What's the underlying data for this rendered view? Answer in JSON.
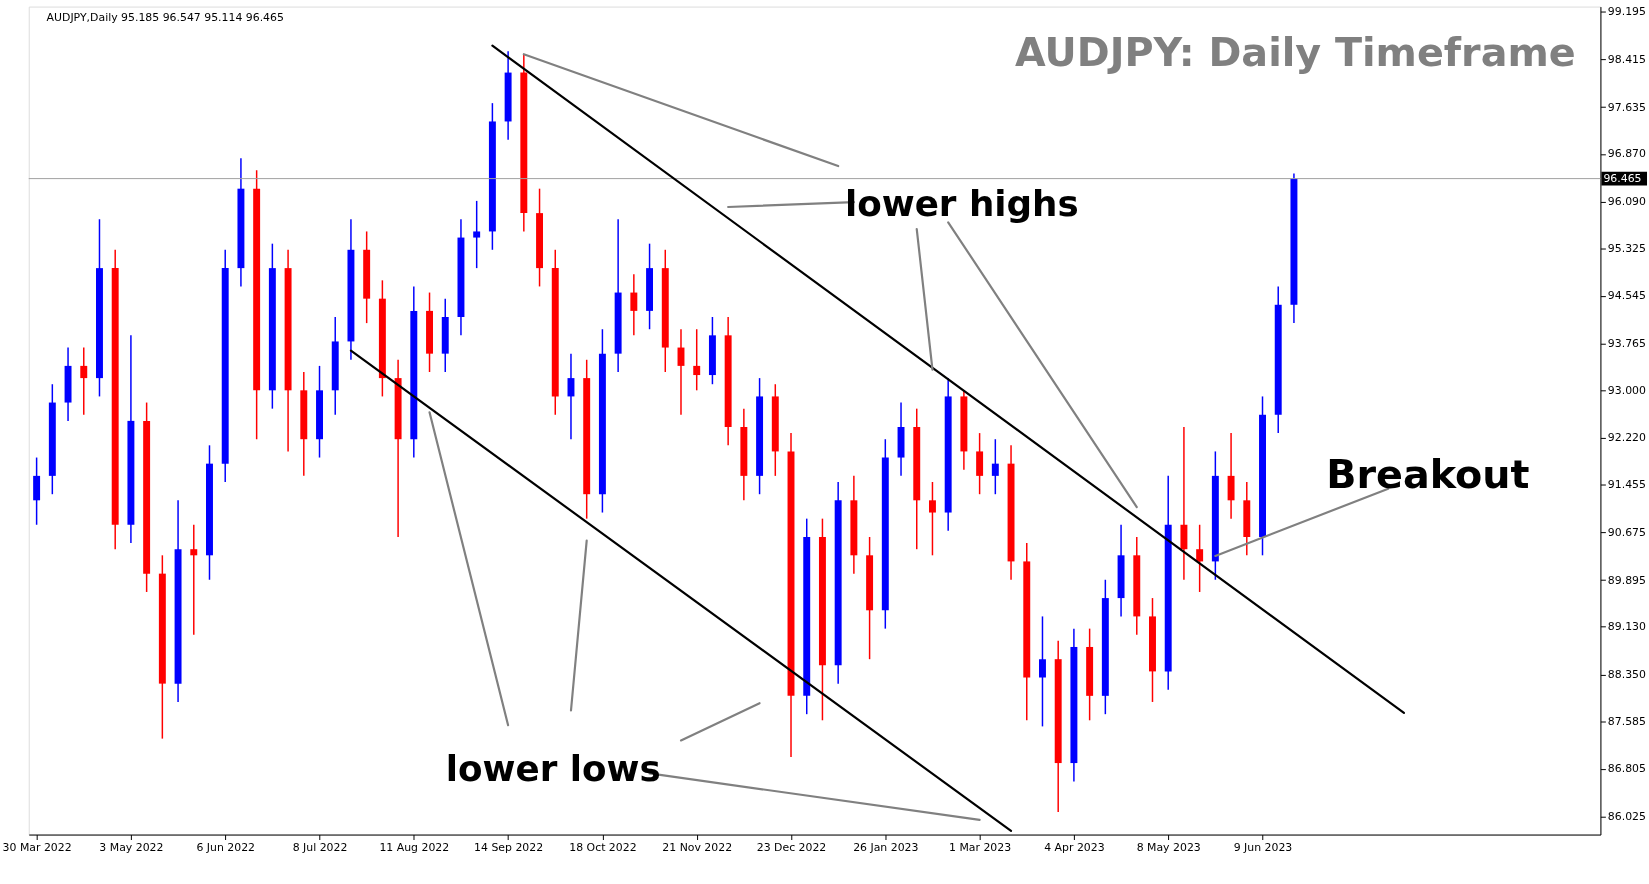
{
  "chart_data": {
    "type": "candlestick",
    "title": "AUDJPY: Daily Timeframe",
    "annotations": [
      "AUDJPY,Daily  95.185 96.547 95.114 96.465",
      "lower highs",
      "lower lows",
      "Breakout"
    ],
    "categories": [
      "30 Mar 2022",
      null,
      null,
      null,
      null,
      null,
      "3 May 2022",
      null,
      null,
      null,
      null,
      null,
      "6 Jun 2022",
      null,
      null,
      null,
      null,
      null,
      "8 Jul 2022",
      null,
      null,
      null,
      null,
      null,
      "11 Aug 2022",
      null,
      null,
      null,
      null,
      null,
      "14 Sep 2022",
      null,
      null,
      null,
      null,
      null,
      "18 Oct 2022",
      null,
      null,
      null,
      null,
      null,
      "21 Nov 2022",
      null,
      null,
      null,
      null,
      null,
      "23 Dec 2022",
      null,
      null,
      null,
      null,
      null,
      "26 Jan 2023",
      null,
      null,
      null,
      null,
      null,
      "1 Mar 2023",
      null,
      null,
      null,
      null,
      null,
      "4 Apr 2023",
      null,
      null,
      null,
      null,
      null,
      "8 May 2023",
      null,
      null,
      null,
      null,
      null,
      "9 Jun 2023",
      null,
      null,
      null,
      null,
      null,
      null,
      null,
      null,
      null,
      null,
      null,
      null,
      null,
      null,
      null,
      null,
      null,
      null,
      null,
      null,
      null
    ],
    "ohlc": [
      [
        91.2,
        91.9,
        90.8,
        91.6
      ],
      [
        91.6,
        93.1,
        91.3,
        92.8
      ],
      [
        92.8,
        93.7,
        92.5,
        93.4
      ],
      [
        93.4,
        93.7,
        92.6,
        93.2
      ],
      [
        93.2,
        95.8,
        92.9,
        95.0
      ],
      [
        95.0,
        95.3,
        90.4,
        90.8
      ],
      [
        90.8,
        93.9,
        90.5,
        92.5
      ],
      [
        92.5,
        92.8,
        89.7,
        90.0
      ],
      [
        90.0,
        90.3,
        87.3,
        88.2
      ],
      [
        88.2,
        91.2,
        87.9,
        90.4
      ],
      [
        90.4,
        90.8,
        89.0,
        90.3
      ],
      [
        90.3,
        92.1,
        89.9,
        91.8
      ],
      [
        91.8,
        95.3,
        91.5,
        95.0
      ],
      [
        95.0,
        96.8,
        94.7,
        96.3
      ],
      [
        96.3,
        96.6,
        92.2,
        93.0
      ],
      [
        93.0,
        95.4,
        92.7,
        95.0
      ],
      [
        95.0,
        95.3,
        92.0,
        93.0
      ],
      [
        93.0,
        93.3,
        91.6,
        92.2
      ],
      [
        92.2,
        93.4,
        91.9,
        93.0
      ],
      [
        93.0,
        94.2,
        92.6,
        93.8
      ],
      [
        93.8,
        95.8,
        93.5,
        95.3
      ],
      [
        95.3,
        95.6,
        94.1,
        94.5
      ],
      [
        94.5,
        94.8,
        92.9,
        93.2
      ],
      [
        93.2,
        93.5,
        90.6,
        92.2
      ],
      [
        92.2,
        94.7,
        91.9,
        94.3
      ],
      [
        94.3,
        94.6,
        93.3,
        93.6
      ],
      [
        93.6,
        94.5,
        93.3,
        94.2
      ],
      [
        94.2,
        95.8,
        93.9,
        95.5
      ],
      [
        95.5,
        96.1,
        95.0,
        95.6
      ],
      [
        95.6,
        97.7,
        95.3,
        97.4
      ],
      [
        97.4,
        98.55,
        97.1,
        98.2
      ],
      [
        98.2,
        98.5,
        95.6,
        95.9
      ],
      [
        95.9,
        96.3,
        94.7,
        95.0
      ],
      [
        95.0,
        95.3,
        92.6,
        92.9
      ],
      [
        92.9,
        93.6,
        92.2,
        93.2
      ],
      [
        93.2,
        93.5,
        90.9,
        91.3
      ],
      [
        91.3,
        94.0,
        91.0,
        93.6
      ],
      [
        93.6,
        95.8,
        93.3,
        94.6
      ],
      [
        94.6,
        94.9,
        93.9,
        94.3
      ],
      [
        94.3,
        95.4,
        94.0,
        95.0
      ],
      [
        95.0,
        95.3,
        93.3,
        93.7
      ],
      [
        93.7,
        94.0,
        92.6,
        93.4
      ],
      [
        93.4,
        94.0,
        93.0,
        93.25
      ],
      [
        93.25,
        94.2,
        93.1,
        93.9
      ],
      [
        93.9,
        94.2,
        92.1,
        92.4
      ],
      [
        92.4,
        92.7,
        91.2,
        91.6
      ],
      [
        91.6,
        93.2,
        91.3,
        92.9
      ],
      [
        92.9,
        93.1,
        91.6,
        92.0
      ],
      [
        92.0,
        92.3,
        87.0,
        88.0
      ],
      [
        88.0,
        90.9,
        87.7,
        90.6
      ],
      [
        90.6,
        90.9,
        87.6,
        88.5
      ],
      [
        88.5,
        91.5,
        88.2,
        91.2
      ],
      [
        91.2,
        91.6,
        90.0,
        90.3
      ],
      [
        90.3,
        90.6,
        88.6,
        89.4
      ],
      [
        89.4,
        92.2,
        89.1,
        91.9
      ],
      [
        91.9,
        92.8,
        91.6,
        92.4
      ],
      [
        92.4,
        92.7,
        90.4,
        91.2
      ],
      [
        91.2,
        91.5,
        90.3,
        91.0
      ],
      [
        91.0,
        93.2,
        90.7,
        92.9
      ],
      [
        92.9,
        93.0,
        91.7,
        92.0
      ],
      [
        92.0,
        92.3,
        91.3,
        91.6
      ],
      [
        91.6,
        92.2,
        91.3,
        91.8
      ],
      [
        91.8,
        92.1,
        89.9,
        90.2
      ],
      [
        90.2,
        90.5,
        87.6,
        88.3
      ],
      [
        88.3,
        89.3,
        87.5,
        88.6
      ],
      [
        88.6,
        88.9,
        86.1,
        86.9
      ],
      [
        86.9,
        89.1,
        86.6,
        88.8
      ],
      [
        88.8,
        89.1,
        87.6,
        88.0
      ],
      [
        88.0,
        89.9,
        87.7,
        89.6
      ],
      [
        89.6,
        90.8,
        89.3,
        90.3
      ],
      [
        90.3,
        90.6,
        89.0,
        89.3
      ],
      [
        89.3,
        89.6,
        87.9,
        88.4
      ],
      [
        88.4,
        91.6,
        88.1,
        90.8
      ],
      [
        90.8,
        92.4,
        89.9,
        90.4
      ],
      [
        90.4,
        90.8,
        89.7,
        90.2
      ],
      [
        90.2,
        92.0,
        89.9,
        91.6
      ],
      [
        91.6,
        92.3,
        90.9,
        91.2
      ],
      [
        91.2,
        91.5,
        90.3,
        90.6
      ],
      [
        90.6,
        92.9,
        90.3,
        92.6
      ],
      [
        92.6,
        94.7,
        92.3,
        94.4
      ],
      [
        94.4,
        96.55,
        94.1,
        96.465
      ],
      null,
      null,
      null,
      null,
      null,
      null,
      null,
      null,
      null,
      null,
      null,
      null,
      null,
      null,
      null,
      null,
      null,
      null,
      null
    ],
    "colors": [
      "#0000ff",
      "#0000ff",
      "#0000ff",
      "#ff0000",
      "#0000ff",
      "#ff0000",
      "#0000ff",
      "#ff0000",
      "#ff0000",
      "#0000ff",
      "#ff0000",
      "#0000ff",
      "#0000ff",
      "#0000ff",
      "#ff0000",
      "#0000ff",
      "#ff0000",
      "#ff0000",
      "#0000ff",
      "#0000ff",
      "#0000ff",
      "#ff0000",
      "#ff0000",
      "#ff0000",
      "#0000ff",
      "#ff0000",
      "#0000ff",
      "#0000ff",
      "#0000ff",
      "#0000ff",
      "#0000ff",
      "#ff0000",
      "#ff0000",
      "#ff0000",
      "#0000ff",
      "#ff0000",
      "#0000ff",
      "#0000ff",
      "#ff0000",
      "#0000ff",
      "#ff0000",
      "#ff0000",
      "#ff0000",
      "#0000ff",
      "#ff0000",
      "#ff0000",
      "#0000ff",
      "#ff0000",
      "#ff0000",
      "#0000ff",
      "#ff0000",
      "#0000ff",
      "#ff0000",
      "#ff0000",
      "#0000ff",
      "#0000ff",
      "#ff0000",
      "#ff0000",
      "#0000ff",
      "#ff0000",
      "#ff0000",
      "#0000ff",
      "#ff0000",
      "#ff0000",
      "#0000ff",
      "#ff0000",
      "#0000ff",
      "#ff0000",
      "#0000ff",
      "#0000ff",
      "#ff0000",
      "#ff0000",
      "#0000ff",
      "#ff0000",
      "#ff0000",
      "#0000ff",
      "#ff0000",
      "#ff0000",
      "#0000ff",
      "#0000ff",
      "#0000ff",
      null,
      null,
      null,
      null,
      null,
      null,
      null,
      null,
      null,
      null,
      null,
      null,
      null,
      null,
      null,
      null,
      null,
      null,
      null
    ],
    "series": [
      {
        "type": "line",
        "color": "#000000",
        "values": [
          null,
          null,
          null,
          null,
          null,
          null,
          null,
          null,
          null,
          null,
          null,
          null,
          null,
          null,
          null,
          null,
          null,
          null,
          null,
          null,
          null,
          null,
          null,
          null,
          null,
          null,
          null,
          null,
          null,
          98.64,
          null,
          null,
          null,
          null,
          null,
          null,
          null,
          null,
          null,
          null,
          null,
          null,
          null,
          null,
          null,
          null,
          null,
          null,
          null,
          null,
          null,
          null,
          null,
          null,
          null,
          null,
          null,
          null,
          null,
          null,
          null,
          null,
          null,
          null,
          null,
          null,
          null,
          null,
          null,
          null,
          null,
          null,
          null,
          null,
          null,
          null,
          null,
          null,
          null,
          null,
          null,
          null,
          null,
          null,
          null,
          null,
          null,
          87.72,
          null,
          null,
          null,
          null,
          null,
          null,
          null,
          null,
          null,
          null,
          null,
          null
        ]
      },
      {
        "type": "line",
        "color": "#000000",
        "values": [
          null,
          null,
          null,
          null,
          null,
          null,
          null,
          null,
          null,
          null,
          null,
          null,
          null,
          null,
          null,
          null,
          null,
          null,
          null,
          null,
          93.65,
          null,
          null,
          null,
          null,
          null,
          null,
          null,
          null,
          null,
          null,
          null,
          null,
          null,
          null,
          null,
          null,
          null,
          null,
          null,
          null,
          null,
          null,
          null,
          null,
          null,
          null,
          null,
          null,
          null,
          null,
          null,
          null,
          null,
          null,
          null,
          null,
          null,
          null,
          null,
          null,
          null,
          85.79,
          null,
          null,
          null,
          null,
          null,
          null,
          null,
          null,
          null,
          null,
          null,
          null,
          null,
          null,
          null,
          null,
          null,
          null,
          null,
          null,
          null,
          null,
          null,
          null,
          null,
          null,
          null,
          null,
          null,
          null,
          null,
          null,
          null,
          null,
          null,
          null,
          null
        ]
      },
      {
        "type": "line",
        "color": "#808080",
        "values": [
          null,
          null,
          null,
          null,
          null,
          null,
          null,
          null,
          null,
          null,
          null,
          null,
          null,
          null,
          null,
          null,
          null,
          null,
          null,
          null,
          null,
          null,
          null,
          null,
          null,
          null,
          null,
          null,
          null,
          null,
          null,
          98.5,
          null,
          null,
          null,
          null,
          null,
          null,
          null,
          null,
          null,
          null,
          null,
          null,
          null,
          null,
          null,
          null,
          null,
          null,
          null,
          96.67,
          null,
          null,
          null,
          null,
          null,
          null,
          null,
          null,
          null,
          null,
          null,
          null,
          null,
          null,
          null,
          null,
          null,
          null,
          null,
          null,
          null,
          null,
          null,
          null,
          null,
          null,
          null,
          null,
          null,
          null,
          null,
          null,
          null,
          null,
          null,
          null,
          null,
          null,
          null,
          null,
          null,
          null,
          null,
          null,
          null,
          null,
          null,
          null
        ]
      },
      {
        "type": "line",
        "color": "#808080",
        "values": [
          null,
          null,
          null,
          null,
          null,
          null,
          null,
          null,
          null,
          null,
          null,
          null,
          null,
          null,
          null,
          null,
          null,
          null,
          null,
          null,
          null,
          null,
          null,
          null,
          null,
          null,
          null,
          null,
          null,
          null,
          null,
          null,
          null,
          null,
          null,
          null,
          null,
          null,
          null,
          null,
          null,
          null,
          null,
          null,
          96.0,
          null,
          null,
          null,
          null,
          null,
          null,
          null,
          96.08,
          null,
          null,
          null,
          null,
          null,
          null,
          null,
          null,
          null,
          null,
          null,
          null,
          null,
          null,
          null,
          null,
          null,
          null,
          null,
          null,
          null,
          null,
          null,
          null,
          null,
          null,
          null,
          null,
          null,
          null,
          null,
          null,
          null,
          null,
          null,
          null,
          null,
          null,
          null,
          null,
          null,
          null,
          null,
          null,
          null,
          null,
          null
        ]
      },
      {
        "type": "line",
        "color": "#808080",
        "values": [
          null,
          null,
          null,
          null,
          null,
          null,
          null,
          null,
          null,
          null,
          null,
          null,
          null,
          null,
          null,
          null,
          null,
          null,
          null,
          null,
          null,
          null,
          null,
          null,
          null,
          null,
          null,
          null,
          null,
          null,
          null,
          null,
          null,
          null,
          null,
          null,
          null,
          null,
          null,
          null,
          null,
          null,
          null,
          null,
          null,
          null,
          null,
          null,
          null,
          null,
          null,
          null,
          null,
          null,
          null,
          null,
          95.64,
          93.34,
          null,
          null,
          null,
          null,
          null,
          null,
          null,
          null,
          null,
          null,
          null,
          null,
          null,
          null,
          null,
          null,
          null,
          null,
          null,
          null,
          null,
          null,
          null,
          null,
          null,
          null,
          null,
          null,
          null,
          null,
          null,
          null,
          null,
          null,
          null,
          null,
          null,
          null,
          null,
          null,
          null,
          null
        ]
      },
      {
        "type": "line",
        "color": "#808080",
        "values": [
          null,
          null,
          null,
          null,
          null,
          null,
          null,
          null,
          null,
          null,
          null,
          null,
          null,
          null,
          null,
          null,
          null,
          null,
          null,
          null,
          null,
          null,
          null,
          null,
          null,
          null,
          null,
          null,
          null,
          null,
          null,
          null,
          null,
          null,
          null,
          null,
          null,
          null,
          null,
          null,
          null,
          null,
          null,
          null,
          null,
          null,
          null,
          null,
          null,
          null,
          null,
          null,
          null,
          null,
          null,
          null,
          null,
          null,
          95.75,
          null,
          null,
          null,
          null,
          null,
          null,
          null,
          null,
          null,
          null,
          null,
          91.09,
          null,
          null,
          null,
          null,
          null,
          null,
          null,
          null,
          null,
          null,
          null,
          null,
          null,
          null,
          null,
          null,
          null,
          null,
          null,
          null,
          null,
          null,
          null,
          null,
          null,
          null,
          null,
          null,
          null
        ]
      },
      {
        "type": "line",
        "color": "#808080",
        "values": [
          null,
          null,
          null,
          null,
          null,
          null,
          null,
          null,
          null,
          null,
          null,
          null,
          null,
          null,
          null,
          null,
          null,
          null,
          null,
          null,
          null,
          null,
          null,
          null,
          null,
          92.64,
          null,
          null,
          null,
          null,
          87.52,
          null,
          null,
          null,
          null,
          null,
          null,
          null,
          null,
          null,
          null,
          null,
          null,
          null,
          null,
          null,
          null,
          null,
          null,
          null,
          null,
          null,
          null,
          null,
          null,
          null,
          null,
          null,
          null,
          null,
          null,
          null,
          null,
          null,
          null,
          null,
          null,
          null,
          null,
          null,
          null,
          null,
          null,
          null,
          null,
          null,
          null,
          null,
          null,
          null,
          null,
          null,
          null,
          null,
          null,
          null,
          null,
          null,
          null,
          null,
          null,
          null,
          null,
          null,
          null,
          null,
          null,
          null,
          null,
          null
        ]
      },
      {
        "type": "line",
        "color": "#808080",
        "values": [
          null,
          null,
          null,
          null,
          null,
          null,
          null,
          null,
          null,
          null,
          null,
          null,
          null,
          null,
          null,
          null,
          null,
          null,
          null,
          null,
          null,
          null,
          null,
          null,
          null,
          null,
          null,
          null,
          null,
          null,
          null,
          null,
          null,
          null,
          87.76,
          90.54,
          null,
          null,
          null,
          null,
          null,
          null,
          null,
          null,
          null,
          null,
          null,
          null,
          null,
          null,
          null,
          null,
          null,
          null,
          null,
          null,
          null,
          null,
          null,
          null,
          null,
          null,
          null,
          null,
          null,
          null,
          null,
          null,
          null,
          null,
          null,
          null,
          null,
          null,
          null,
          null,
          null,
          null,
          null,
          null,
          null,
          null,
          null,
          null,
          null,
          null,
          null,
          null,
          null,
          null,
          null,
          null,
          null,
          null,
          null,
          null,
          null,
          null,
          null,
          null
        ]
      },
      {
        "type": "line",
        "color": "#808080",
        "values": [
          null,
          null,
          null,
          null,
          null,
          null,
          null,
          null,
          null,
          null,
          null,
          null,
          null,
          null,
          null,
          null,
          null,
          null,
          null,
          null,
          null,
          null,
          null,
          null,
          null,
          null,
          null,
          null,
          null,
          null,
          null,
          null,
          null,
          null,
          null,
          null,
          null,
          null,
          null,
          null,
          null,
          87.27,
          null,
          null,
          null,
          null,
          87.88,
          null,
          null,
          null,
          null,
          null,
          null,
          null,
          null,
          null,
          null,
          null,
          null,
          null,
          null,
          null,
          null,
          null,
          null,
          null,
          null,
          null,
          null,
          null,
          null,
          null,
          null,
          null,
          null,
          null,
          null,
          null,
          null,
          null,
          null,
          null,
          null,
          null,
          null,
          null,
          null,
          null,
          null,
          null,
          null,
          null,
          null,
          null,
          null,
          null,
          null,
          null,
          null,
          null
        ]
      },
      {
        "type": "line",
        "color": "#808080",
        "values": [
          null,
          null,
          null,
          null,
          null,
          null,
          null,
          null,
          null,
          null,
          null,
          null,
          null,
          null,
          null,
          null,
          null,
          null,
          null,
          null,
          null,
          null,
          null,
          null,
          null,
          null,
          null,
          null,
          null,
          null,
          null,
          null,
          null,
          null,
          null,
          null,
          null,
          null,
          null,
          86.73,
          null,
          null,
          null,
          null,
          null,
          null,
          null,
          null,
          null,
          null,
          null,
          null,
          null,
          null,
          null,
          null,
          null,
          null,
          null,
          null,
          85.97,
          null,
          null,
          null,
          null,
          null,
          null,
          null,
          null,
          null,
          null,
          null,
          null,
          null,
          null,
          null,
          null,
          null,
          null,
          null,
          null,
          null,
          null,
          null,
          null,
          null,
          null,
          null,
          null,
          null,
          null,
          null,
          null,
          null,
          null,
          null,
          null,
          null,
          null,
          null
        ]
      },
      {
        "type": "line",
        "color": "#808080",
        "values": [
          null,
          null,
          null,
          null,
          null,
          null,
          null,
          null,
          null,
          null,
          null,
          null,
          null,
          null,
          null,
          null,
          null,
          null,
          null,
          null,
          null,
          null,
          null,
          null,
          null,
          null,
          null,
          null,
          null,
          null,
          null,
          null,
          null,
          null,
          null,
          null,
          null,
          null,
          null,
          null,
          null,
          null,
          null,
          null,
          null,
          null,
          null,
          null,
          null,
          null,
          null,
          null,
          null,
          null,
          null,
          null,
          null,
          null,
          null,
          null,
          null,
          null,
          null,
          null,
          null,
          null,
          null,
          null,
          null,
          null,
          null,
          null,
          null,
          null,
          null,
          90.29,
          null,
          null,
          null,
          null,
          null,
          null,
          null,
          null,
          null,
          null,
          91.39,
          null,
          null,
          null,
          null,
          null,
          null,
          null,
          null,
          null,
          null,
          null,
          null,
          null
        ]
      }
    ],
    "ref_lines": [
      {
        "axis": "y",
        "value": 96.465,
        "label": "96.465",
        "color": "#a0a0a0"
      }
    ],
    "ylim": [
      85.73,
      99.28
    ],
    "yticks": [
      86.025,
      86.805,
      87.585,
      {
        "value": 88.35,
        "label": "88.350"
      },
      {
        "value": 89.13,
        "label": "89.130"
      },
      89.895,
      90.675,
      91.455,
      {
        "value": 92.22,
        "label": "92.220"
      },
      {
        "value": 93.0,
        "label": "93.000"
      },
      93.765,
      94.545,
      95.325,
      {
        "value": 96.09,
        "label": "96.090"
      },
      {
        "value": 96.87,
        "label": "96.870"
      },
      97.635,
      98.415,
      99.195
    ]
  }
}
